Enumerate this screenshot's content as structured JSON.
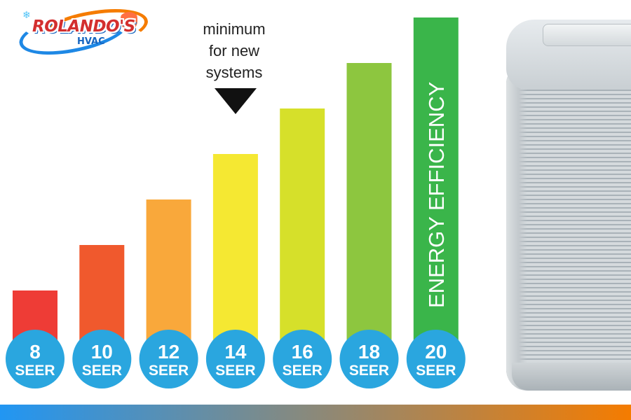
{
  "logo": {
    "name": "ROLANDO'S",
    "sub": "HVAC"
  },
  "annotation": {
    "lines": [
      "minimum",
      "for new",
      "systems"
    ],
    "category": "14"
  },
  "chart_data": {
    "type": "bar",
    "categories": [
      "8",
      "10",
      "12",
      "14",
      "16",
      "18",
      "20"
    ],
    "category_unit": "SEER",
    "values": [
      8,
      10,
      12,
      14,
      16,
      18,
      20
    ],
    "bar_colors": [
      "#ee3c36",
      "#f0592d",
      "#f9a83b",
      "#f5e832",
      "#d6e02a",
      "#8dc63f",
      "#3ab54a"
    ],
    "circle_color": "#2aa6df",
    "bar_label": {
      "category": "20",
      "text": "ENERGY EFFICIENCY",
      "color": "#ffffff"
    },
    "title": "",
    "xlabel": "",
    "ylabel": "",
    "ylim": [
      6,
      20
    ]
  },
  "colors": {
    "bottom_bar_start": "#2196f3",
    "bottom_bar_end": "#f57c00"
  }
}
